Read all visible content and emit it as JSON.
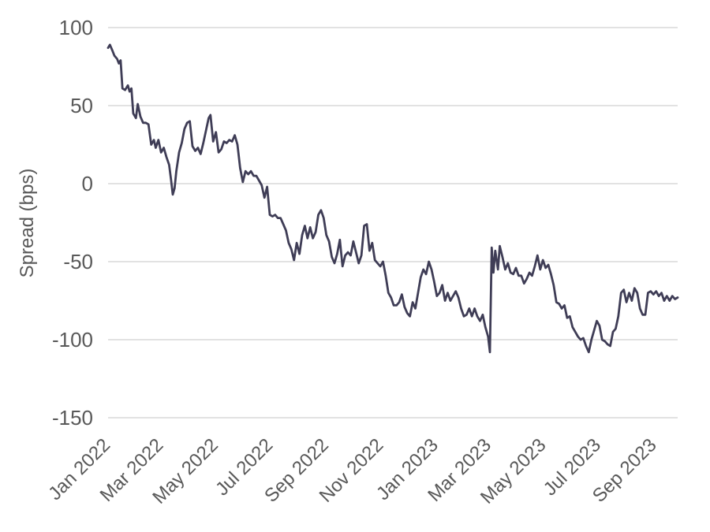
{
  "chart_data": {
    "type": "line",
    "title": "",
    "xlabel": "",
    "ylabel": "Spread (bps)",
    "ylim": [
      -150,
      100
    ],
    "yticks": [
      100,
      50,
      0,
      -50,
      -100,
      -150
    ],
    "xlim": [
      "2022-01-03",
      "2023-09-29"
    ],
    "xticks": [
      {
        "date": "2022-01-03",
        "label": "Jan 2022"
      },
      {
        "date": "2022-03-03",
        "label": "Mar 2022"
      },
      {
        "date": "2022-05-03",
        "label": "May 2022"
      },
      {
        "date": "2022-07-03",
        "label": "Jul 2022"
      },
      {
        "date": "2022-09-03",
        "label": "Sep 2022"
      },
      {
        "date": "2022-11-03",
        "label": "Nov 2022"
      },
      {
        "date": "2023-01-03",
        "label": "Jan 2023"
      },
      {
        "date": "2023-03-03",
        "label": "Mar 2023"
      },
      {
        "date": "2023-05-03",
        "label": "May 2023"
      },
      {
        "date": "2023-07-03",
        "label": "Jul 2023"
      },
      {
        "date": "2023-09-03",
        "label": "Sep 2023"
      }
    ],
    "grid": true,
    "series": [
      {
        "color": "#3f3d56",
        "points": [
          [
            "2022-01-03",
            87
          ],
          [
            "2022-01-05",
            89
          ],
          [
            "2022-01-08",
            85
          ],
          [
            "2022-01-10",
            82
          ],
          [
            "2022-01-13",
            80
          ],
          [
            "2022-01-15",
            77
          ],
          [
            "2022-01-17",
            79
          ],
          [
            "2022-01-19",
            61
          ],
          [
            "2022-01-22",
            60
          ],
          [
            "2022-01-25",
            63
          ],
          [
            "2022-01-27",
            59
          ],
          [
            "2022-01-29",
            61
          ],
          [
            "2022-01-31",
            45
          ],
          [
            "2022-02-03",
            42
          ],
          [
            "2022-02-05",
            51
          ],
          [
            "2022-02-08",
            43
          ],
          [
            "2022-02-11",
            39
          ],
          [
            "2022-02-14",
            39
          ],
          [
            "2022-02-17",
            38
          ],
          [
            "2022-02-20",
            25
          ],
          [
            "2022-02-23",
            28
          ],
          [
            "2022-02-25",
            23
          ],
          [
            "2022-02-28",
            28
          ],
          [
            "2022-03-03",
            20
          ],
          [
            "2022-03-06",
            23
          ],
          [
            "2022-03-09",
            17
          ],
          [
            "2022-03-12",
            12
          ],
          [
            "2022-03-14",
            3
          ],
          [
            "2022-03-16",
            -7
          ],
          [
            "2022-03-18",
            -3
          ],
          [
            "2022-03-20",
            8
          ],
          [
            "2022-03-23",
            20
          ],
          [
            "2022-03-26",
            26
          ],
          [
            "2022-03-29",
            35
          ],
          [
            "2022-04-01",
            39
          ],
          [
            "2022-04-04",
            40
          ],
          [
            "2022-04-07",
            24
          ],
          [
            "2022-04-10",
            21
          ],
          [
            "2022-04-13",
            23
          ],
          [
            "2022-04-16",
            19
          ],
          [
            "2022-04-19",
            26
          ],
          [
            "2022-04-22",
            34
          ],
          [
            "2022-04-25",
            42
          ],
          [
            "2022-04-27",
            44
          ],
          [
            "2022-04-30",
            27
          ],
          [
            "2022-05-03",
            33
          ],
          [
            "2022-05-06",
            20
          ],
          [
            "2022-05-09",
            22
          ],
          [
            "2022-05-12",
            27
          ],
          [
            "2022-05-15",
            26
          ],
          [
            "2022-05-18",
            28
          ],
          [
            "2022-05-21",
            27
          ],
          [
            "2022-05-24",
            31
          ],
          [
            "2022-05-27",
            25
          ],
          [
            "2022-05-30",
            10
          ],
          [
            "2022-06-02",
            1
          ],
          [
            "2022-06-05",
            8
          ],
          [
            "2022-06-08",
            6
          ],
          [
            "2022-06-11",
            8
          ],
          [
            "2022-06-14",
            5
          ],
          [
            "2022-06-17",
            5
          ],
          [
            "2022-06-20",
            2
          ],
          [
            "2022-06-23",
            -1
          ],
          [
            "2022-06-26",
            -9
          ],
          [
            "2022-06-29",
            -2
          ],
          [
            "2022-07-02",
            -20
          ],
          [
            "2022-07-05",
            -21
          ],
          [
            "2022-07-08",
            -20
          ],
          [
            "2022-07-11",
            -22
          ],
          [
            "2022-07-14",
            -22
          ],
          [
            "2022-07-17",
            -26
          ],
          [
            "2022-07-20",
            -30
          ],
          [
            "2022-07-23",
            -38
          ],
          [
            "2022-07-26",
            -42
          ],
          [
            "2022-07-29",
            -49
          ],
          [
            "2022-08-01",
            -38
          ],
          [
            "2022-08-04",
            -45
          ],
          [
            "2022-08-07",
            -33
          ],
          [
            "2022-08-10",
            -27
          ],
          [
            "2022-08-13",
            -35
          ],
          [
            "2022-08-16",
            -28
          ],
          [
            "2022-08-19",
            -35
          ],
          [
            "2022-08-22",
            -31
          ],
          [
            "2022-08-25",
            -20
          ],
          [
            "2022-08-28",
            -17
          ],
          [
            "2022-08-31",
            -22
          ],
          [
            "2022-09-03",
            -33
          ],
          [
            "2022-09-06",
            -37
          ],
          [
            "2022-09-09",
            -47
          ],
          [
            "2022-09-12",
            -51
          ],
          [
            "2022-09-15",
            -45
          ],
          [
            "2022-09-18",
            -36
          ],
          [
            "2022-09-21",
            -53
          ],
          [
            "2022-09-24",
            -46
          ],
          [
            "2022-09-27",
            -44
          ],
          [
            "2022-09-30",
            -46
          ],
          [
            "2022-10-03",
            -37
          ],
          [
            "2022-10-06",
            -44
          ],
          [
            "2022-10-09",
            -51
          ],
          [
            "2022-10-12",
            -46
          ],
          [
            "2022-10-15",
            -27
          ],
          [
            "2022-10-18",
            -26
          ],
          [
            "2022-10-21",
            -43
          ],
          [
            "2022-10-24",
            -38
          ],
          [
            "2022-10-27",
            -49
          ],
          [
            "2022-10-30",
            -51
          ],
          [
            "2022-11-02",
            -53
          ],
          [
            "2022-11-05",
            -50
          ],
          [
            "2022-11-08",
            -59
          ],
          [
            "2022-11-11",
            -70
          ],
          [
            "2022-11-14",
            -73
          ],
          [
            "2022-11-17",
            -78
          ],
          [
            "2022-11-20",
            -78
          ],
          [
            "2022-11-23",
            -76
          ],
          [
            "2022-11-26",
            -71
          ],
          [
            "2022-11-29",
            -79
          ],
          [
            "2022-12-02",
            -83
          ],
          [
            "2022-12-05",
            -85
          ],
          [
            "2022-12-08",
            -76
          ],
          [
            "2022-12-11",
            -80
          ],
          [
            "2022-12-14",
            -70
          ],
          [
            "2022-12-17",
            -60
          ],
          [
            "2022-12-20",
            -55
          ],
          [
            "2022-12-23",
            -58
          ],
          [
            "2022-12-26",
            -50
          ],
          [
            "2022-12-29",
            -55
          ],
          [
            "2023-01-01",
            -63
          ],
          [
            "2023-01-04",
            -72
          ],
          [
            "2023-01-07",
            -70
          ],
          [
            "2023-01-10",
            -65
          ],
          [
            "2023-01-13",
            -75
          ],
          [
            "2023-01-16",
            -70
          ],
          [
            "2023-01-19",
            -75
          ],
          [
            "2023-01-22",
            -72
          ],
          [
            "2023-01-25",
            -69
          ],
          [
            "2023-01-28",
            -73
          ],
          [
            "2023-01-31",
            -80
          ],
          [
            "2023-02-03",
            -85
          ],
          [
            "2023-02-06",
            -84
          ],
          [
            "2023-02-09",
            -80
          ],
          [
            "2023-02-12",
            -85
          ],
          [
            "2023-02-15",
            -80
          ],
          [
            "2023-02-18",
            -85
          ],
          [
            "2023-02-21",
            -88
          ],
          [
            "2023-02-24",
            -84
          ],
          [
            "2023-02-27",
            -92
          ],
          [
            "2023-03-02",
            -98
          ],
          [
            "2023-03-04",
            -108
          ],
          [
            "2023-03-06",
            -41
          ],
          [
            "2023-03-08",
            -57
          ],
          [
            "2023-03-10",
            -43
          ],
          [
            "2023-03-13",
            -55
          ],
          [
            "2023-03-15",
            -40
          ],
          [
            "2023-03-18",
            -47
          ],
          [
            "2023-03-21",
            -55
          ],
          [
            "2023-03-24",
            -51
          ],
          [
            "2023-03-27",
            -57
          ],
          [
            "2023-03-30",
            -58
          ],
          [
            "2023-04-02",
            -54
          ],
          [
            "2023-04-05",
            -59
          ],
          [
            "2023-04-08",
            -59
          ],
          [
            "2023-04-11",
            -64
          ],
          [
            "2023-04-14",
            -61
          ],
          [
            "2023-04-17",
            -57
          ],
          [
            "2023-04-20",
            -59
          ],
          [
            "2023-04-23",
            -53
          ],
          [
            "2023-04-26",
            -46
          ],
          [
            "2023-04-29",
            -55
          ],
          [
            "2023-05-02",
            -49
          ],
          [
            "2023-05-05",
            -54
          ],
          [
            "2023-05-08",
            -52
          ],
          [
            "2023-05-11",
            -58
          ],
          [
            "2023-05-14",
            -65
          ],
          [
            "2023-05-17",
            -76
          ],
          [
            "2023-05-20",
            -77
          ],
          [
            "2023-05-23",
            -80
          ],
          [
            "2023-05-26",
            -78
          ],
          [
            "2023-05-29",
            -86
          ],
          [
            "2023-06-01",
            -85
          ],
          [
            "2023-06-04",
            -92
          ],
          [
            "2023-06-07",
            -95
          ],
          [
            "2023-06-10",
            -98
          ],
          [
            "2023-06-13",
            -100
          ],
          [
            "2023-06-16",
            -99
          ],
          [
            "2023-06-19",
            -104
          ],
          [
            "2023-06-22",
            -108
          ],
          [
            "2023-06-25",
            -100
          ],
          [
            "2023-06-28",
            -94
          ],
          [
            "2023-07-01",
            -88
          ],
          [
            "2023-07-04",
            -91
          ],
          [
            "2023-07-07",
            -100
          ],
          [
            "2023-07-10",
            -101
          ],
          [
            "2023-07-13",
            -103
          ],
          [
            "2023-07-16",
            -104
          ],
          [
            "2023-07-19",
            -95
          ],
          [
            "2023-07-22",
            -93
          ],
          [
            "2023-07-25",
            -85
          ],
          [
            "2023-07-28",
            -70
          ],
          [
            "2023-07-31",
            -68
          ],
          [
            "2023-08-03",
            -76
          ],
          [
            "2023-08-06",
            -70
          ],
          [
            "2023-08-09",
            -75
          ],
          [
            "2023-08-12",
            -67
          ],
          [
            "2023-08-15",
            -70
          ],
          [
            "2023-08-18",
            -80
          ],
          [
            "2023-08-21",
            -84
          ],
          [
            "2023-08-24",
            -84
          ],
          [
            "2023-08-27",
            -70
          ],
          [
            "2023-08-30",
            -69
          ],
          [
            "2023-09-02",
            -71
          ],
          [
            "2023-09-05",
            -69
          ],
          [
            "2023-09-08",
            -72
          ],
          [
            "2023-09-11",
            -70
          ],
          [
            "2023-09-14",
            -75
          ],
          [
            "2023-09-17",
            -72
          ],
          [
            "2023-09-20",
            -75
          ],
          [
            "2023-09-23",
            -72
          ],
          [
            "2023-09-26",
            -74
          ],
          [
            "2023-09-29",
            -73
          ]
        ]
      }
    ]
  }
}
